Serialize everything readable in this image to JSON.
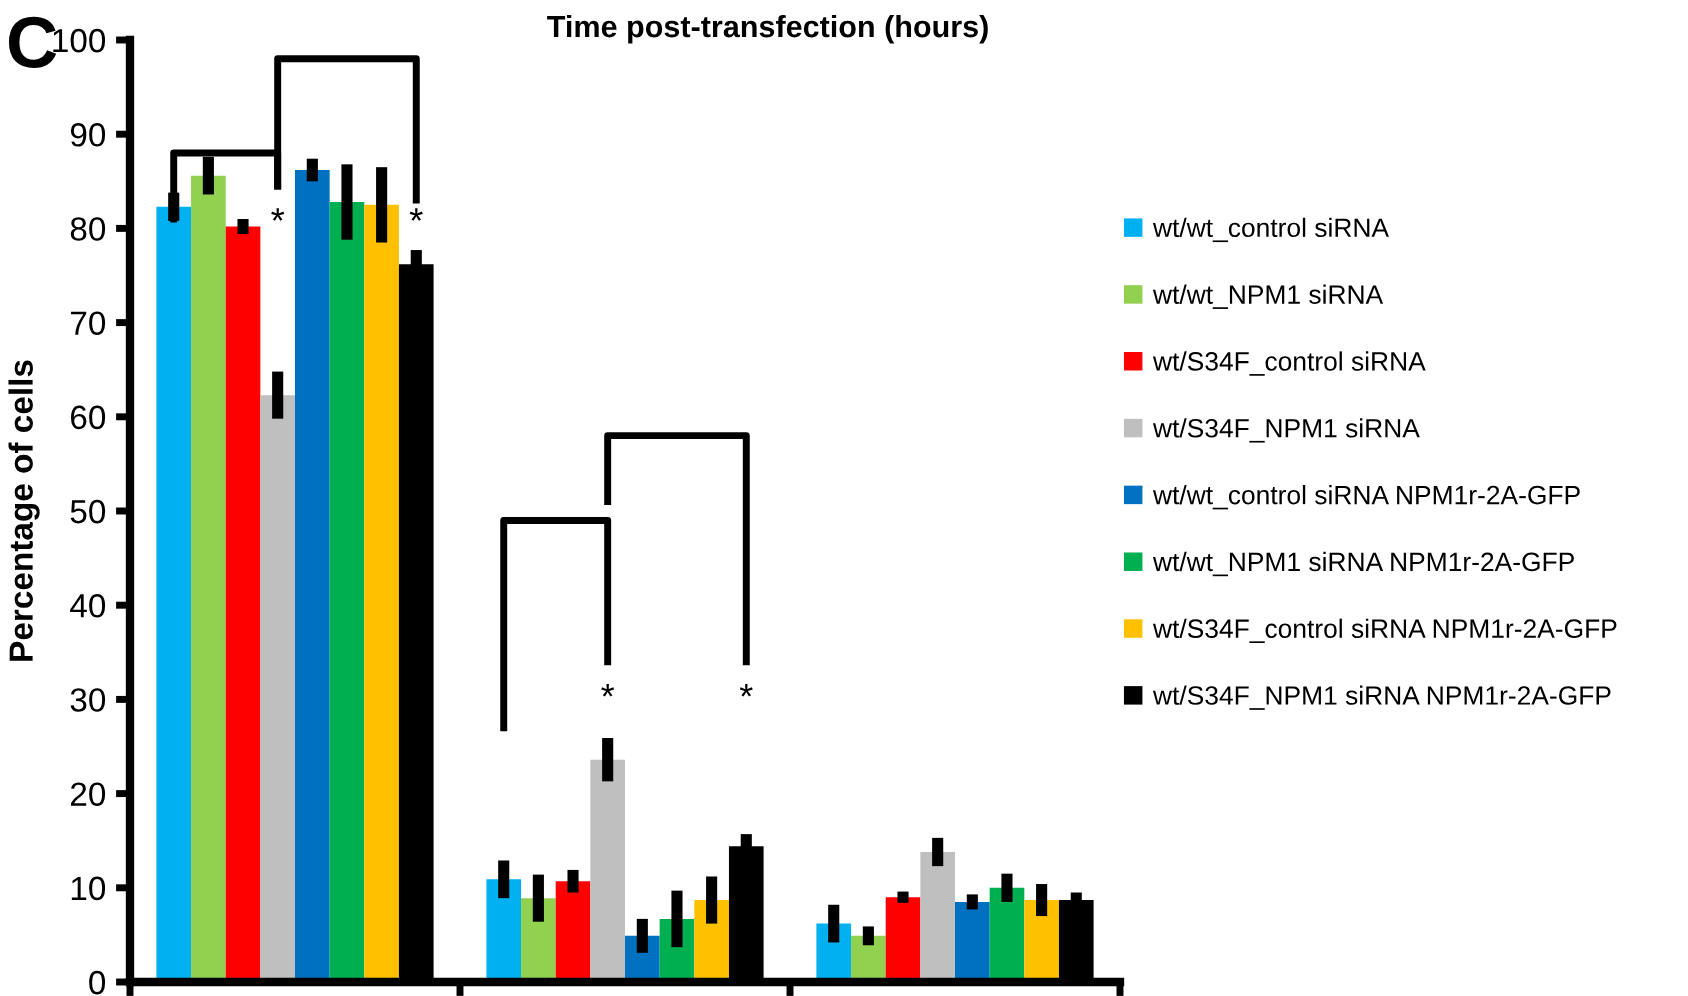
{
  "chart_data": {
    "type": "bar",
    "title": "Time post-transfection (hours)",
    "ylabel": "Percentage of cells",
    "categories": [
      null,
      null,
      null
    ],
    "ylim": [
      0,
      100
    ],
    "yticks": [
      0,
      10,
      20,
      30,
      40,
      50,
      60,
      70,
      80,
      90,
      100
    ],
    "grid": false,
    "legend": "right",
    "annotations": [
      "C",
      "*",
      "*",
      "*",
      "*"
    ],
    "series": [
      {
        "name": "wt/wt_control siRNA",
        "color": "#00b0f0",
        "values": [
          82.3,
          10.9,
          6.2
        ],
        "errors": [
          1.5,
          2.0,
          2.0
        ]
      },
      {
        "name": "wt/wt_NPM1 siRNA",
        "color": "#92d050",
        "values": [
          85.6,
          8.9,
          4.9
        ],
        "errors": [
          2.0,
          2.5,
          1.0
        ]
      },
      {
        "name": "wt/S34F_control siRNA",
        "color": "#ff0000",
        "values": [
          80.2,
          10.7,
          9.0
        ],
        "errors": [
          0.8,
          1.2,
          0.6
        ]
      },
      {
        "name": "wt/S34F_NPM1 siRNA",
        "color": "#bfbfbf",
        "values": [
          62.3,
          23.6,
          13.8
        ],
        "errors": [
          2.5,
          2.3,
          1.5
        ]
      },
      {
        "name": "wt/wt_control siRNA NPM1r-2A-GFP",
        "color": "#0070c0",
        "values": [
          86.2,
          4.9,
          8.5
        ],
        "errors": [
          1.2,
          1.8,
          0.8
        ]
      },
      {
        "name": "wt/wt_NPM1 siRNA NPM1r-2A-GFP",
        "color": "#00b050",
        "values": [
          82.8,
          6.7,
          10.0
        ],
        "errors": [
          4.0,
          3.0,
          1.5
        ]
      },
      {
        "name": "wt/S34F_control siRNA NPM1r-2A-GFP",
        "color": "#ffc000",
        "values": [
          82.5,
          8.7,
          8.7
        ],
        "errors": [
          4.0,
          2.5,
          1.7
        ]
      },
      {
        "name": "wt/S34F_NPM1 siRNA NPM1r-2A-GFP",
        "color": "#000000",
        "values": [
          76.2,
          14.4,
          8.7
        ],
        "errors": [
          1.5,
          1.3,
          0.8
        ]
      }
    ]
  }
}
